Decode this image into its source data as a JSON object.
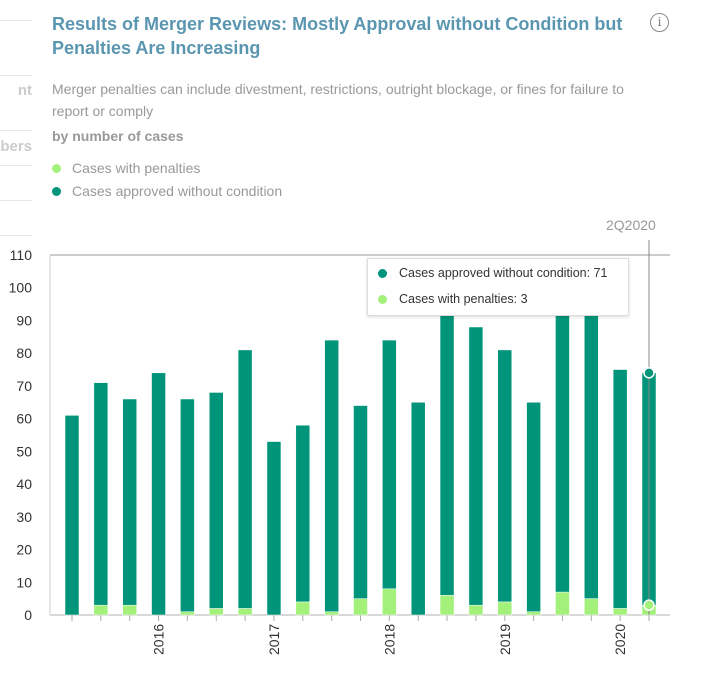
{
  "sidebar_fragments": [
    "nt",
    "bers"
  ],
  "title": "Results of Merger Reviews: Mostly Approval without Condition but Penalties Are Increasing",
  "subtitle": "Merger penalties can include divestment, restrictions, outright blockage, or fines for failure to report or comply",
  "unit_label": "by number of cases",
  "info_icon": "i",
  "legend": [
    {
      "label": "Cases with penalties",
      "color": "#a3f07b"
    },
    {
      "label": "Cases approved without condition",
      "color": "#00957a"
    }
  ],
  "hover": {
    "period": "2Q2020",
    "tooltip": [
      {
        "label": "Cases approved without condition: 71",
        "color": "#00957a"
      },
      {
        "label": "Cases with penalties: 3",
        "color": "#a3f07b"
      }
    ]
  },
  "chart_data": {
    "type": "bar",
    "stacked": true,
    "categories": [
      "2Q2015",
      "3Q2015",
      "4Q2015",
      "1Q2016",
      "2Q2016",
      "3Q2016",
      "4Q2016",
      "1Q2017",
      "2Q2017",
      "3Q2017",
      "4Q2017",
      "1Q2018",
      "2Q2018",
      "3Q2018",
      "4Q2018",
      "1Q2019",
      "2Q2019",
      "3Q2019",
      "4Q2019",
      "1Q2020",
      "2Q2020"
    ],
    "x_tick_labels": [
      "2016",
      "2017",
      "2018",
      "2019",
      "2020"
    ],
    "x_tick_categories": [
      "1Q2016",
      "1Q2017",
      "1Q2018",
      "1Q2019",
      "1Q2020"
    ],
    "series": [
      {
        "name": "Cases with penalties",
        "color": "#a3f07b",
        "values": [
          0,
          3,
          3,
          0,
          1,
          2,
          2,
          0,
          4,
          1,
          5,
          8,
          0,
          6,
          3,
          4,
          1,
          7,
          5,
          2,
          3
        ]
      },
      {
        "name": "Cases approved without condition",
        "color": "#00957a",
        "values": [
          61,
          68,
          63,
          74,
          65,
          66,
          79,
          53,
          54,
          83,
          59,
          76,
          65,
          90,
          85,
          77,
          64,
          91,
          90,
          73,
          71
        ]
      }
    ],
    "ylim": [
      0,
      110
    ],
    "y_ticks": [
      0,
      10,
      20,
      30,
      40,
      50,
      60,
      70,
      80,
      90,
      100,
      110
    ],
    "grid": false,
    "legend_position": "top-left"
  }
}
